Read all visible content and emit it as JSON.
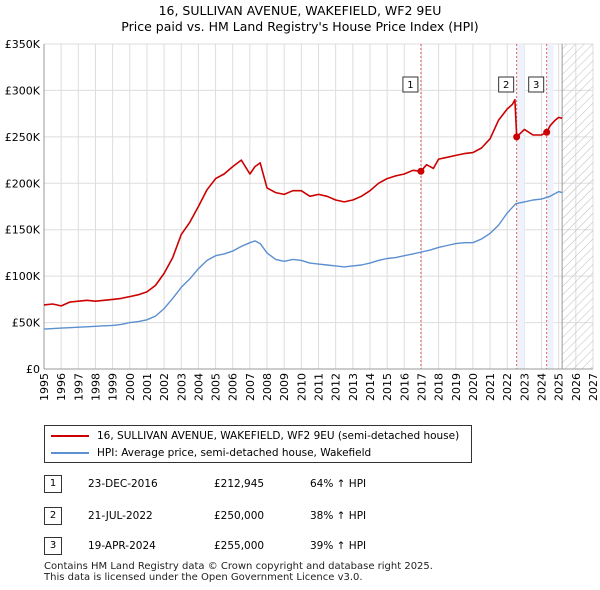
{
  "title_line1": "16, SULLIVAN AVENUE, WAKEFIELD, WF2 9EU",
  "title_line2": "Price paid vs. HM Land Registry's House Price Index (HPI)",
  "colors": {
    "property": "#cc0000",
    "hpi": "#5b8fd0",
    "marker_line": "#e06060",
    "grid": "#dddddd"
  },
  "chart_data": {
    "type": "line",
    "xlim": [
      1995,
      2027
    ],
    "ylim": [
      0,
      350000
    ],
    "y_ticks": [
      0,
      50000,
      100000,
      150000,
      200000,
      250000,
      300000,
      350000
    ],
    "y_tick_labels": [
      "£0",
      "£50K",
      "£100K",
      "£150K",
      "£200K",
      "£250K",
      "£300K",
      "£350K"
    ],
    "x_ticks": [
      1995,
      1996,
      1997,
      1998,
      1999,
      2000,
      2001,
      2002,
      2003,
      2004,
      2005,
      2006,
      2007,
      2008,
      2009,
      2010,
      2011,
      2012,
      2013,
      2014,
      2015,
      2016,
      2017,
      2018,
      2019,
      2020,
      2021,
      2022,
      2023,
      2024,
      2025,
      2026,
      2027
    ],
    "x_tick_labels": [
      "1995",
      "1996",
      "1997",
      "1998",
      "1999",
      "2000",
      "2001",
      "2002",
      "2003",
      "2004",
      "2005",
      "2006",
      "2007",
      "2008",
      "2009",
      "2010",
      "2011",
      "2012",
      "2013",
      "2014",
      "2015",
      "2016",
      "2017",
      "2018",
      "2019",
      "2020",
      "2021",
      "2022",
      "2023",
      "2024",
      "2025",
      "2026",
      "2027"
    ],
    "future_from": 2025.2,
    "series": [
      {
        "name": "16, SULLIVAN AVENUE, WAKEFIELD, WF2 9EU (semi-detached house)",
        "color": "#cc0000",
        "x": [
          1995.0,
          1995.5,
          1996.0,
          1996.5,
          1997.0,
          1997.5,
          1998.0,
          1998.5,
          1999.0,
          1999.5,
          2000.0,
          2000.5,
          2001.0,
          2001.5,
          2002.0,
          2002.5,
          2003.0,
          2003.5,
          2004.0,
          2004.5,
          2005.0,
          2005.5,
          2006.0,
          2006.5,
          2007.0,
          2007.3,
          2007.6,
          2008.0,
          2008.5,
          2009.0,
          2009.5,
          2010.0,
          2010.5,
          2011.0,
          2011.5,
          2012.0,
          2012.5,
          2013.0,
          2013.5,
          2014.0,
          2014.5,
          2015.0,
          2015.5,
          2016.0,
          2016.5,
          2016.97,
          2017.3,
          2017.7,
          2018.0,
          2018.5,
          2019.0,
          2019.5,
          2020.0,
          2020.5,
          2021.0,
          2021.5,
          2022.0,
          2022.3,
          2022.45,
          2022.55,
          2023.0,
          2023.5,
          2024.0,
          2024.3,
          2024.5,
          2024.8,
          2025.0,
          2025.2
        ],
        "y": [
          69000,
          70000,
          68000,
          72000,
          73000,
          74000,
          73000,
          74000,
          75000,
          76000,
          78000,
          80000,
          83000,
          90000,
          103000,
          120000,
          145000,
          158000,
          175000,
          193000,
          205000,
          210000,
          218000,
          225000,
          210000,
          218000,
          222000,
          195000,
          190000,
          188000,
          192000,
          192000,
          186000,
          188000,
          186000,
          182000,
          180000,
          182000,
          186000,
          192000,
          200000,
          205000,
          208000,
          210000,
          214000,
          212945,
          220000,
          216000,
          226000,
          228000,
          230000,
          232000,
          233000,
          238000,
          248000,
          268000,
          280000,
          285000,
          290000,
          250000,
          258000,
          252000,
          252000,
          255000,
          262000,
          268000,
          271000,
          270000
        ]
      },
      {
        "name": "HPI: Average price, semi-detached house, Wakefield",
        "color": "#5b8fd0",
        "x": [
          1995.0,
          1995.5,
          1996.0,
          1996.5,
          1997.0,
          1997.5,
          1998.0,
          1998.5,
          1999.0,
          1999.5,
          2000.0,
          2000.5,
          2001.0,
          2001.5,
          2002.0,
          2002.5,
          2003.0,
          2003.5,
          2004.0,
          2004.5,
          2005.0,
          2005.5,
          2006.0,
          2006.5,
          2007.0,
          2007.3,
          2007.6,
          2008.0,
          2008.5,
          2009.0,
          2009.5,
          2010.0,
          2010.5,
          2011.0,
          2011.5,
          2012.0,
          2012.5,
          2013.0,
          2013.5,
          2014.0,
          2014.5,
          2015.0,
          2015.5,
          2016.0,
          2016.5,
          2017.0,
          2017.5,
          2018.0,
          2018.5,
          2019.0,
          2019.5,
          2020.0,
          2020.5,
          2021.0,
          2021.5,
          2022.0,
          2022.5,
          2023.0,
          2023.5,
          2024.0,
          2024.5,
          2025.0,
          2025.2
        ],
        "y": [
          43000,
          43500,
          44000,
          44500,
          45000,
          45500,
          46000,
          46500,
          47000,
          48000,
          50000,
          51000,
          53000,
          57000,
          65000,
          76000,
          88000,
          97000,
          108000,
          117000,
          122000,
          124000,
          127000,
          132000,
          136000,
          138000,
          135000,
          125000,
          118000,
          116000,
          118000,
          117000,
          114000,
          113000,
          112000,
          111000,
          110000,
          111000,
          112000,
          114000,
          117000,
          119000,
          120000,
          122000,
          124000,
          126000,
          128000,
          131000,
          133000,
          135000,
          136000,
          136000,
          140000,
          146000,
          155000,
          168000,
          178000,
          180000,
          182000,
          183000,
          186000,
          191000,
          190000
        ]
      }
    ],
    "sales": [
      {
        "label": "1",
        "x": 2016.97,
        "y": 212945
      },
      {
        "label": "2",
        "x": 2022.55,
        "y": 250000
      },
      {
        "label": "3",
        "x": 2024.3,
        "y": 255000
      }
    ]
  },
  "legend": {
    "property_label": "16, SULLIVAN AVENUE, WAKEFIELD, WF2 9EU (semi-detached house)",
    "hpi_label": "HPI: Average price, semi-detached house, Wakefield"
  },
  "annotations": [
    {
      "num": "1",
      "date": "23-DEC-2016",
      "price": "£212,945",
      "hpi": "64% ↑ HPI"
    },
    {
      "num": "2",
      "date": "21-JUL-2022",
      "price": "£250,000",
      "hpi": "38% ↑ HPI"
    },
    {
      "num": "3",
      "date": "19-APR-2024",
      "price": "£255,000",
      "hpi": "39% ↑ HPI"
    }
  ],
  "footer_line1": "Contains HM Land Registry data © Crown copyright and database right 2025.",
  "footer_line2": "This data is licensed under the Open Government Licence v3.0."
}
